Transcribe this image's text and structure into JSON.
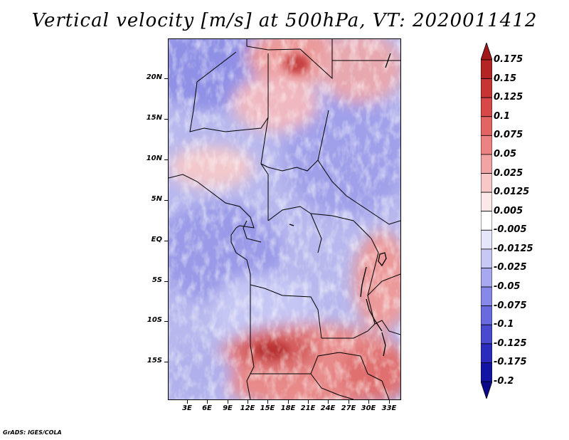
{
  "title": "Vertical velocity [m/s] at 500hPa, VT: 2020011412",
  "footer": "GrADS: IGES/COLA",
  "map": {
    "y_tick_labels": [
      "20N",
      "15N",
      "10N",
      "5N",
      "EQ",
      "5S",
      "10S",
      "15S"
    ],
    "x_tick_labels": [
      "3E",
      "6E",
      "9E",
      "12E",
      "15E",
      "18E",
      "21E",
      "24E",
      "27E",
      "30E",
      "33E"
    ],
    "lat_range": [
      -19.5,
      24.5
    ],
    "lon_range": [
      0,
      34.5
    ]
  },
  "colorbar": {
    "labels": [
      "0.175",
      "0.15",
      "0.125",
      "0.1",
      "0.075",
      "0.05",
      "0.025",
      "0.0125",
      "0.005",
      "-0.005",
      "-0.0125",
      "-0.025",
      "-0.05",
      "-0.075",
      "-0.1",
      "-0.125",
      "-0.175",
      "-0.2"
    ],
    "colors": [
      "#a01818",
      "#b52424",
      "#c83434",
      "#d84848",
      "#e46464",
      "#ec8282",
      "#f2a4a4",
      "#f8c8c8",
      "#fce8e8",
      "#ffffff",
      "#e6e6fa",
      "#c8c8f5",
      "#a8a8f0",
      "#8888ea",
      "#6a6ae0",
      "#4a4ad0",
      "#2a2abc",
      "#1414a4",
      "#0a0a8a"
    ]
  }
}
